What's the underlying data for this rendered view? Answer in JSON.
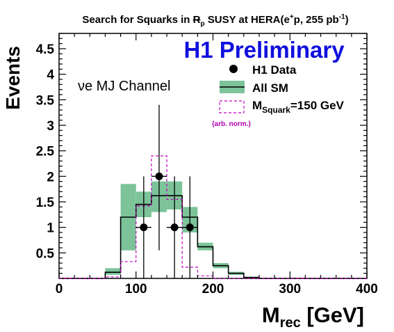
{
  "colors": {
    "sm_band": "#7cc39a",
    "sm_line": "#000000",
    "data": "#000000",
    "signal": "#c000c0",
    "preliminary": "#1010dd",
    "note": "#b000b0"
  },
  "chart_data": {
    "type": "histogram",
    "title": {
      "pre": "Search for Squarks in ",
      "rp": "R",
      "rp_sub": "p",
      "post": " SUSY at HERA(e",
      "sup": "+",
      "post2": "p, 255 pb",
      "sup2": "-1",
      "post3": ")"
    },
    "label_h1": "H1 Preliminary",
    "channel_label": "νe MJ Channel",
    "xlabel": {
      "main": "M",
      "sub": "rec",
      "rest": " [GeV]"
    },
    "ylabel": "Events",
    "xlim": [
      0,
      400
    ],
    "ylim": [
      0,
      4.8
    ],
    "xticks": [
      0,
      100,
      200,
      300,
      400
    ],
    "yticks": [
      0.5,
      1,
      1.5,
      2,
      2.5,
      3,
      3.5,
      4,
      4.5
    ],
    "ytick_labels": [
      "0.5",
      "1",
      "1.5",
      "2",
      "2.5",
      "3",
      "3.5",
      "4",
      "4.5"
    ],
    "bin_edges": [
      0,
      20,
      40,
      60,
      80,
      100,
      120,
      140,
      160,
      180,
      200,
      220,
      240,
      260,
      280,
      300,
      320,
      340,
      360,
      380,
      400
    ],
    "series": [
      {
        "name": "All SM",
        "kind": "step_with_band",
        "values": [
          0,
          0,
          0,
          0.12,
          1.2,
          1.45,
          1.62,
          1.62,
          1.2,
          0.62,
          0.25,
          0.1,
          0.02,
          0,
          0,
          0,
          0,
          0,
          0,
          0
        ],
        "band_low": [
          0,
          0,
          0,
          0.07,
          0.55,
          1.2,
          1.3,
          1.35,
          0.9,
          0.55,
          0.2,
          0.07,
          0.01,
          0,
          0,
          0,
          0,
          0,
          0,
          0
        ],
        "band_high": [
          0,
          0,
          0,
          0.2,
          1.85,
          1.7,
          1.9,
          1.9,
          1.4,
          0.7,
          0.3,
          0.13,
          0.03,
          0,
          0,
          0,
          0,
          0,
          0,
          0
        ]
      },
      {
        "name": "M_Squark=150 GeV",
        "kind": "dashed_step",
        "values": [
          0,
          0,
          0,
          0.03,
          0.33,
          1.42,
          2.4,
          1.55,
          0.22,
          0.05,
          0,
          0,
          0,
          0,
          0,
          0,
          0,
          0,
          0,
          0
        ]
      },
      {
        "name": "H1 Data",
        "kind": "points",
        "points": [
          {
            "x": 110,
            "y": 1,
            "ylo": 0,
            "yhi": 2.0,
            "xlo": 100,
            "xhi": 120
          },
          {
            "x": 130,
            "y": 2,
            "ylo": 0.55,
            "yhi": 3.4,
            "xlo": 120,
            "xhi": 140
          },
          {
            "x": 150,
            "y": 1,
            "ylo": 0,
            "yhi": 2.0,
            "xlo": 140,
            "xhi": 160
          },
          {
            "x": 170,
            "y": 1,
            "ylo": 0,
            "yhi": 2.0,
            "xlo": 160,
            "xhi": 180
          }
        ]
      }
    ],
    "legend": {
      "position": "top-right",
      "data_label": "H1 Data",
      "sm_label": "All SM",
      "signal_label": {
        "main": "M",
        "sub": "Squark",
        "rest": "=150 GeV"
      },
      "signal_note": "(arb. norm.)"
    }
  }
}
